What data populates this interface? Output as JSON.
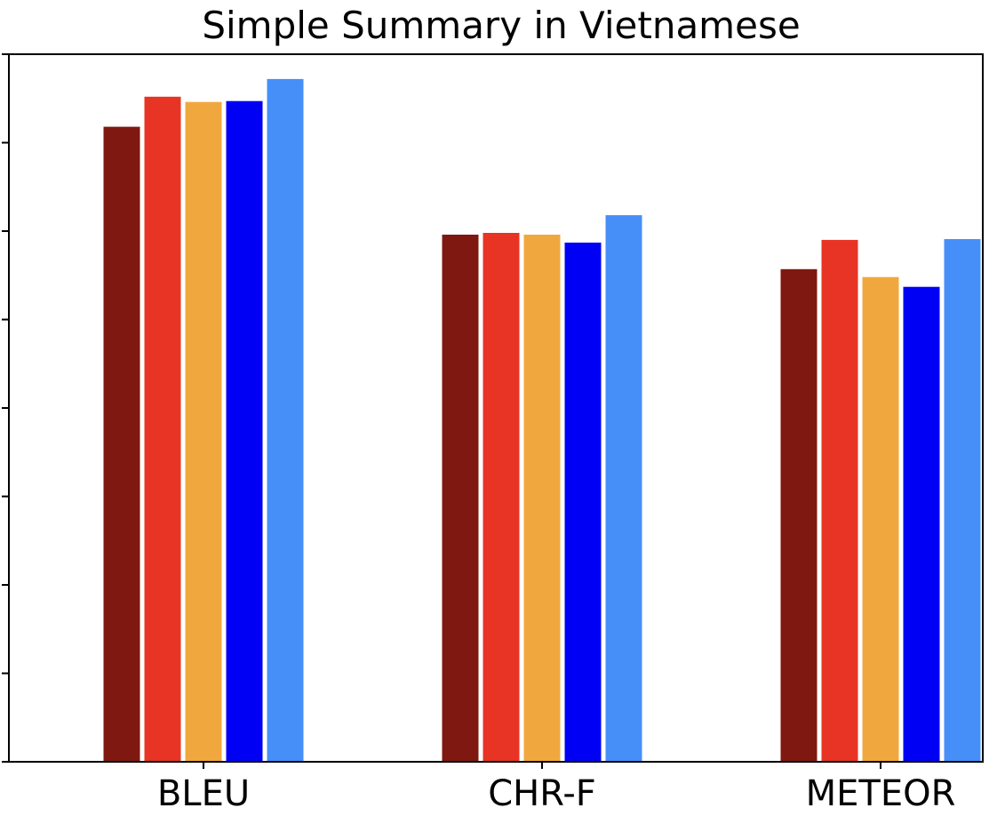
{
  "chart_data": {
    "type": "bar",
    "title": "Simple Summary in Vietnamese",
    "xlabel": "",
    "ylabel": "",
    "categories": [
      "BLEU",
      "CHR-F",
      "METEOR"
    ],
    "ylim": [
      0,
      8
    ],
    "y_tick_values": [
      0,
      1,
      2,
      3,
      4,
      5,
      6,
      7,
      8
    ],
    "y_tick_labels_visible": false,
    "grid": false,
    "legend": "none",
    "series": [
      {
        "color": "#7f1810",
        "values": [
          7.18,
          5.96,
          5.57
        ]
      },
      {
        "color": "#e83424",
        "values": [
          7.52,
          5.98,
          5.9
        ]
      },
      {
        "color": "#f0a83e",
        "values": [
          7.46,
          5.96,
          5.48
        ]
      },
      {
        "color": "#0000f5",
        "values": [
          7.47,
          5.87,
          5.37
        ]
      },
      {
        "color": "#468ff8",
        "values": [
          7.72,
          6.18,
          5.91
        ]
      }
    ]
  }
}
